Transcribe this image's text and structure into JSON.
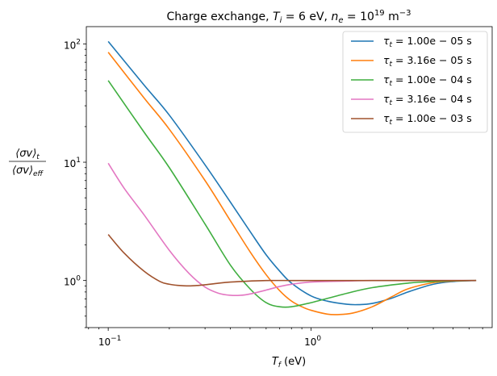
{
  "chart_data": {
    "type": "line",
    "title": "Charge exchange, T_i = 6 eV, n_e = 10^19 m^-3",
    "title_parts": {
      "prefix": "Charge exchange, ",
      "ti_sym": "T",
      "ti_sub": "i",
      "ti_val": " = 6 eV, ",
      "ne_sym": "n",
      "ne_sub": "e",
      "ne_eq": " = 10",
      "ne_exp": "19",
      "unit": " m",
      "unit_exp": "−3"
    },
    "xlabel": "T_f (eV)",
    "xlabel_parts": {
      "sym": "T",
      "sub": "f",
      "unit": " (eV)"
    },
    "ylabel": "⟨σv⟩_t / ⟨σv⟩_eff",
    "ylabel_parts": {
      "num": "⟨σv⟩",
      "num_sub": "t",
      "den": "⟨σv⟩",
      "den_sub": "eff"
    },
    "x_scale": "log",
    "y_scale": "log",
    "xlim": [
      0.078,
      7.8
    ],
    "ylim": [
      0.4,
      140
    ],
    "x_ticks": [
      {
        "value": 0.1,
        "base": "10",
        "exp": "−1"
      },
      {
        "value": 1,
        "base": "10",
        "exp": "0"
      }
    ],
    "y_ticks": [
      {
        "value": 1,
        "base": "10",
        "exp": "0"
      },
      {
        "value": 10,
        "base": "10",
        "exp": "1"
      },
      {
        "value": 100,
        "base": "10",
        "exp": "2"
      }
    ],
    "legend_position": "top-right",
    "series": [
      {
        "name": "τ_t = 1.00e−05 s",
        "label_sym": "τ",
        "label_sub": "t",
        "label_val": " = 1.00e − 05 s",
        "color": "#1f77b4",
        "x": [
          0.1,
          0.15,
          0.2,
          0.3,
          0.4,
          0.5,
          0.6,
          0.7,
          0.8,
          1.0,
          1.2,
          1.5,
          1.7,
          2.0,
          2.5,
          3.0,
          4.0,
          5.0,
          6.5
        ],
        "y": [
          105,
          45,
          25,
          9.5,
          4.6,
          2.6,
          1.65,
          1.2,
          0.95,
          0.74,
          0.67,
          0.63,
          0.625,
          0.64,
          0.71,
          0.8,
          0.93,
          0.98,
          1.0
        ]
      },
      {
        "name": "τ_t = 3.16e−05 s",
        "label_sym": "τ",
        "label_sub": "t",
        "label_val": " = 3.16e − 05 s",
        "color": "#ff7f0e",
        "x": [
          0.1,
          0.15,
          0.2,
          0.3,
          0.4,
          0.5,
          0.6,
          0.7,
          0.8,
          0.9,
          1.0,
          1.2,
          1.35,
          1.6,
          2.0,
          2.5,
          3.0,
          4.0,
          5.0,
          6.5
        ],
        "y": [
          85,
          35,
          19,
          7.0,
          3.2,
          1.75,
          1.12,
          0.82,
          0.67,
          0.6,
          0.56,
          0.52,
          0.515,
          0.53,
          0.6,
          0.73,
          0.85,
          0.96,
          0.99,
          1.0
        ]
      },
      {
        "name": "τ_t = 1.00e−04 s",
        "label_sym": "τ",
        "label_sub": "t",
        "label_val": " = 1.00e − 04 s",
        "color": "#3fae3f",
        "x": [
          0.1,
          0.15,
          0.2,
          0.3,
          0.4,
          0.5,
          0.6,
          0.7,
          0.8,
          1.0,
          1.5,
          2.0,
          3.0,
          4.0,
          5.0,
          6.5
        ],
        "y": [
          49,
          18,
          9.0,
          3.0,
          1.35,
          0.85,
          0.65,
          0.6,
          0.6,
          0.65,
          0.78,
          0.87,
          0.95,
          0.98,
          0.995,
          1.0
        ]
      },
      {
        "name": "τ_t = 3.16e−04 s",
        "label_sym": "τ",
        "label_sub": "t",
        "label_val": " = 3.16e − 04 s",
        "color": "#e377c2",
        "x": [
          0.1,
          0.12,
          0.15,
          0.2,
          0.25,
          0.3,
          0.35,
          0.4,
          0.45,
          0.5,
          0.6,
          0.7,
          0.8,
          1.0,
          1.5,
          2.0,
          3.0,
          5.0,
          6.5
        ],
        "y": [
          9.8,
          6.0,
          3.6,
          1.8,
          1.15,
          0.88,
          0.78,
          0.75,
          0.75,
          0.77,
          0.83,
          0.89,
          0.93,
          0.97,
          0.99,
          1.0,
          1.0,
          1.0,
          1.0
        ]
      },
      {
        "name": "τ_t = 1.00e−03 s",
        "label_sym": "τ",
        "label_sub": "t",
        "label_val": " = 1.00e − 03 s",
        "color": "#a0522d",
        "x": [
          0.1,
          0.12,
          0.15,
          0.18,
          0.2,
          0.22,
          0.25,
          0.28,
          0.3,
          0.35,
          0.4,
          0.5,
          0.6,
          0.8,
          1.0,
          2.0,
          4.0,
          6.5
        ],
        "y": [
          2.45,
          1.7,
          1.2,
          0.98,
          0.93,
          0.91,
          0.9,
          0.91,
          0.92,
          0.95,
          0.97,
          0.99,
          1.0,
          1.0,
          1.0,
          1.0,
          1.0,
          1.0
        ]
      }
    ]
  }
}
